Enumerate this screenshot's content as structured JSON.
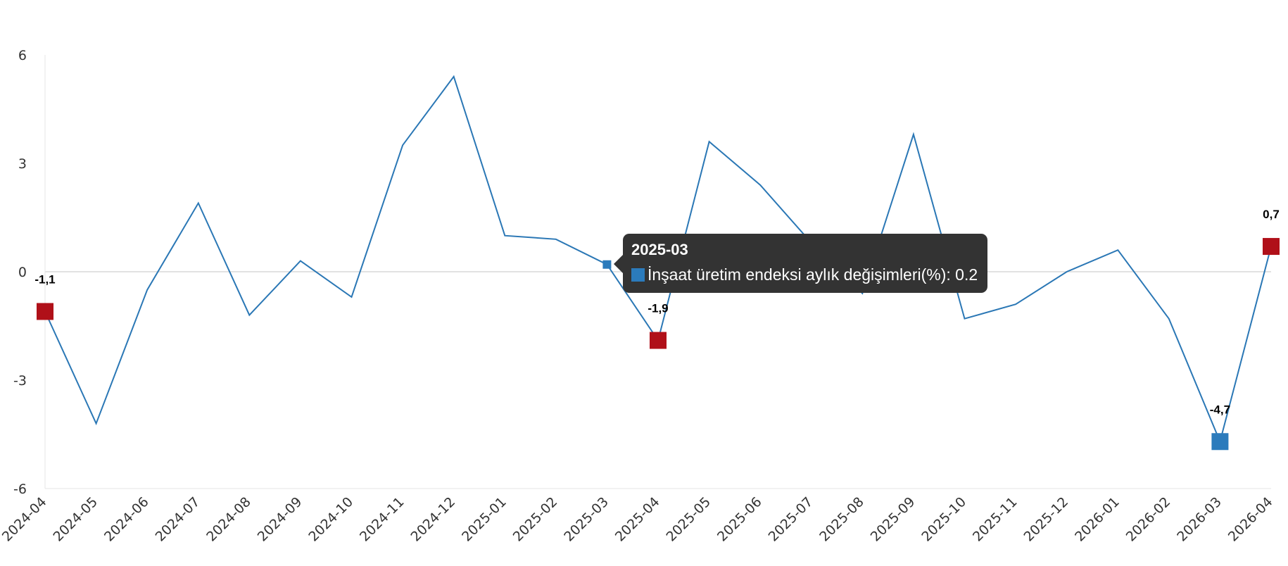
{
  "colors": {
    "line": "#2a77b5",
    "marker_blue": "#2b7bbc",
    "marker_red": "#b01019",
    "grid": "#d9d9d9",
    "tooltip_bg": "#333333"
  },
  "chart_data": {
    "type": "line",
    "x": [
      "2024-04",
      "2024-05",
      "2024-06",
      "2024-07",
      "2024-08",
      "2024-09",
      "2024-10",
      "2024-11",
      "2024-12",
      "2025-01",
      "2025-02",
      "2025-03",
      "2025-04",
      "2025-05",
      "2025-06",
      "2025-07",
      "2025-08",
      "2025-09",
      "2025-10",
      "2025-11",
      "2025-12",
      "2026-01",
      "2026-02",
      "2026-03",
      "2026-04"
    ],
    "series": [
      {
        "name": "İnşaat üretim endeksi aylık değişimleri(%)",
        "values": [
          -1.1,
          -4.2,
          -0.5,
          1.9,
          -1.2,
          0.3,
          -0.7,
          3.5,
          5.4,
          1.0,
          0.9,
          0.2,
          -1.9,
          3.6,
          2.4,
          0.8,
          -0.6,
          3.8,
          -1.3,
          -0.9,
          0.0,
          0.6,
          -1.3,
          -4.7,
          0.7
        ]
      }
    ],
    "yticks": [
      "6",
      "3",
      "0",
      "-3",
      "-6"
    ],
    "ylim": [
      -6,
      6
    ],
    "grid": "zero line only",
    "highlighted_points": [
      {
        "x": "2024-04",
        "value": -1.1,
        "label": "-1,1",
        "color": "red"
      },
      {
        "x": "2025-04",
        "value": -1.9,
        "label": "-1,9",
        "color": "red"
      },
      {
        "x": "2026-03",
        "value": -4.7,
        "label": "-4,7",
        "color": "blue"
      },
      {
        "x": "2026-04",
        "value": 0.7,
        "label": "0,7",
        "color": "red"
      }
    ]
  },
  "tooltip": {
    "title": "2025-03",
    "series_name": "İnşaat üretim endeksi aylık değişimleri(%)",
    "value": "0.2",
    "text": "İnşaat üretim endeksi aylık değişimleri(%): 0.2"
  }
}
